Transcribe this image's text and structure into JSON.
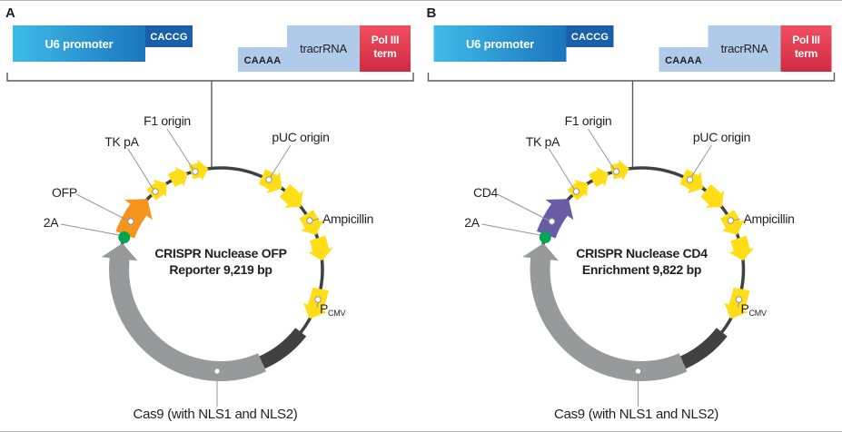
{
  "panels": [
    {
      "panel_label": "A",
      "gene_color": "#F7941E",
      "cassette": {
        "u6_promoter": "U6 promoter",
        "caccg_overhang": "CACCG",
        "caaaa_overhang": "CAAAA",
        "tracrrna": "tracrRNA",
        "pol_iii_term_line1": "Pol III",
        "pol_iii_term_line2": "term"
      },
      "plasmid": {
        "name_line1": "CRISPR Nuclease OFP",
        "name_line2": "Reporter 9,219 bp",
        "labels": {
          "f1_origin": "F1 origin",
          "tk_pa": "TK pA",
          "puc_origin": "pUC origin",
          "ampicillin": "Ampicillin",
          "pcmv_main": "P",
          "pcmv_sub": "CMV",
          "gene": "OFP",
          "linker_2a": "2A",
          "cas9": "Cas9 (with NLS1 and NLS2)"
        }
      }
    },
    {
      "panel_label": "B",
      "gene_color": "#6A5BA7",
      "cassette": {
        "u6_promoter": "U6 promoter",
        "caccg_overhang": "CACCG",
        "caaaa_overhang": "CAAAA",
        "tracrrna": "tracrRNA",
        "pol_iii_term_line1": "Pol III",
        "pol_iii_term_line2": "term"
      },
      "plasmid": {
        "name_line1": "CRISPR Nuclease CD4",
        "name_line2": "Enrichment 9,822 bp",
        "labels": {
          "f1_origin": "F1 origin",
          "tk_pa": "TK pA",
          "puc_origin": "pUC origin",
          "ampicillin": "Ampicillin",
          "pcmv_main": "P",
          "pcmv_sub": "CMV",
          "gene": "CD4",
          "linker_2a": "2A",
          "cas9": "Cas9 (with NLS1 and NLS2)"
        }
      }
    }
  ],
  "colors": {
    "feature_yellow": "#FFDE17",
    "cas9_gray": "#98999B",
    "backbone_dark": "#414042",
    "linker_green": "#00A651",
    "u6_gradient_start": "#3FBCE9",
    "u6_gradient_end": "#1B75BC",
    "caccg_blue": "#1A5FA9",
    "light_blue": "#AFCBE9",
    "pol_red_start": "#EF5061",
    "pol_red_end": "#D22A44",
    "label_text": "#231F20",
    "leader_gray": "#939598"
  }
}
